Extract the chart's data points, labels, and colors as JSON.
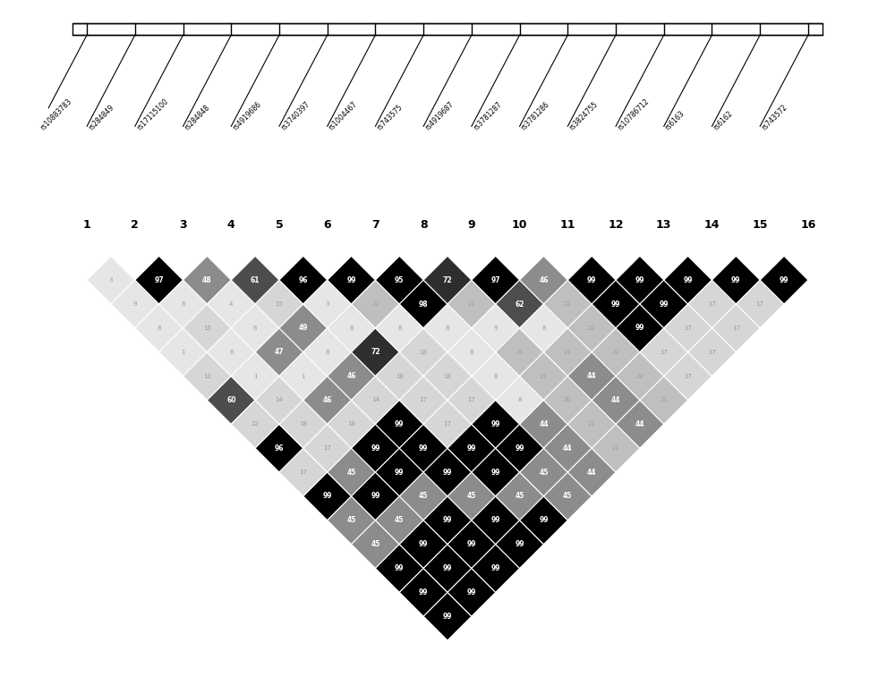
{
  "snp_labels": [
    "rs10883783",
    "rs284849",
    "rs17115100",
    "rs284848",
    "rs4919686",
    "rs3740397",
    "rs1004467",
    "rs743575",
    "rs4919687",
    "rs3781287",
    "rs3781286",
    "rs3824755",
    "rs10786712",
    "rs6163",
    "rs6162",
    "rs743572"
  ],
  "n": 16,
  "figsize": [
    10.0,
    7.66
  ],
  "dpi": 100,
  "r2_values": {
    "0,1": 3,
    "0,2": 9,
    "0,3": 8,
    "0,4": 1,
    "0,5": 12,
    "0,6": 60,
    "0,7": 12,
    "0,8": 96,
    "0,9": 17,
    "0,10": 99,
    "0,11": 45,
    "0,12": 45,
    "0,13": 99,
    "0,14": 99,
    "0,15": 99,
    "1,2": 97,
    "1,3": 6,
    "1,4": 15,
    "1,5": 6,
    "1,6": 1,
    "1,7": 14,
    "1,8": 18,
    "1,9": 17,
    "1,10": 45,
    "1,11": 99,
    "1,12": 45,
    "1,13": 99,
    "1,14": 99,
    "1,15": 99,
    "2,3": 48,
    "2,4": 4,
    "2,5": 6,
    "2,6": 47,
    "2,7": 1,
    "2,8": 46,
    "2,9": 18,
    "2,10": 99,
    "2,11": 99,
    "2,12": 45,
    "2,13": 99,
    "2,14": 99,
    "2,15": 99,
    "3,4": 61,
    "3,5": 15,
    "3,6": 49,
    "3,7": 8,
    "3,8": 46,
    "3,9": 14,
    "3,10": 99,
    "3,11": 99,
    "3,12": 99,
    "3,13": 45,
    "3,14": 99,
    "3,15": 99,
    "4,5": 96,
    "4,6": 3,
    "4,7": 8,
    "4,8": 72,
    "4,9": 18,
    "4,10": 17,
    "4,11": 17,
    "4,12": 99,
    "4,13": 99,
    "4,14": 45,
    "4,15": 99,
    "5,6": 99,
    "5,7": 22,
    "5,8": 8,
    "5,9": 18,
    "5,10": 18,
    "5,11": 17,
    "5,12": 99,
    "5,13": 99,
    "5,14": 45,
    "5,15": 45,
    "6,7": 95,
    "6,8": 98,
    "6,9": 8,
    "6,10": 8,
    "6,11": 8,
    "6,12": 8,
    "6,13": 44,
    "6,14": 44,
    "6,15": 44,
    "7,8": 72,
    "7,9": 21,
    "7,10": 9,
    "7,11": 21,
    "7,12": 21,
    "7,13": 20,
    "7,14": 21,
    "7,15": 21,
    "8,9": 97,
    "8,10": 62,
    "8,11": 8,
    "8,12": 21,
    "8,13": 44,
    "8,14": 44,
    "8,15": 44,
    "9,10": 46,
    "9,11": 22,
    "9,12": 22,
    "9,13": 22,
    "9,14": 22,
    "9,15": 21,
    "10,11": 99,
    "10,12": 99,
    "10,13": 99,
    "10,14": 17,
    "10,15": 17,
    "11,12": 99,
    "11,13": 99,
    "11,14": 17,
    "11,15": 17,
    "12,13": 99,
    "12,14": 17,
    "12,15": 17,
    "13,14": 99,
    "13,15": 17,
    "14,15": 99
  },
  "show_text_threshold": 44,
  "color_thresholds": [
    90,
    70,
    60,
    50,
    40,
    30,
    20,
    10,
    0
  ],
  "color_grays": [
    0.0,
    0.18,
    0.3,
    0.42,
    0.55,
    0.65,
    0.75,
    0.84,
    0.9
  ],
  "small_text_color": "#999999",
  "diamond_edge_color": "white",
  "diamond_edge_lw": 0.8
}
